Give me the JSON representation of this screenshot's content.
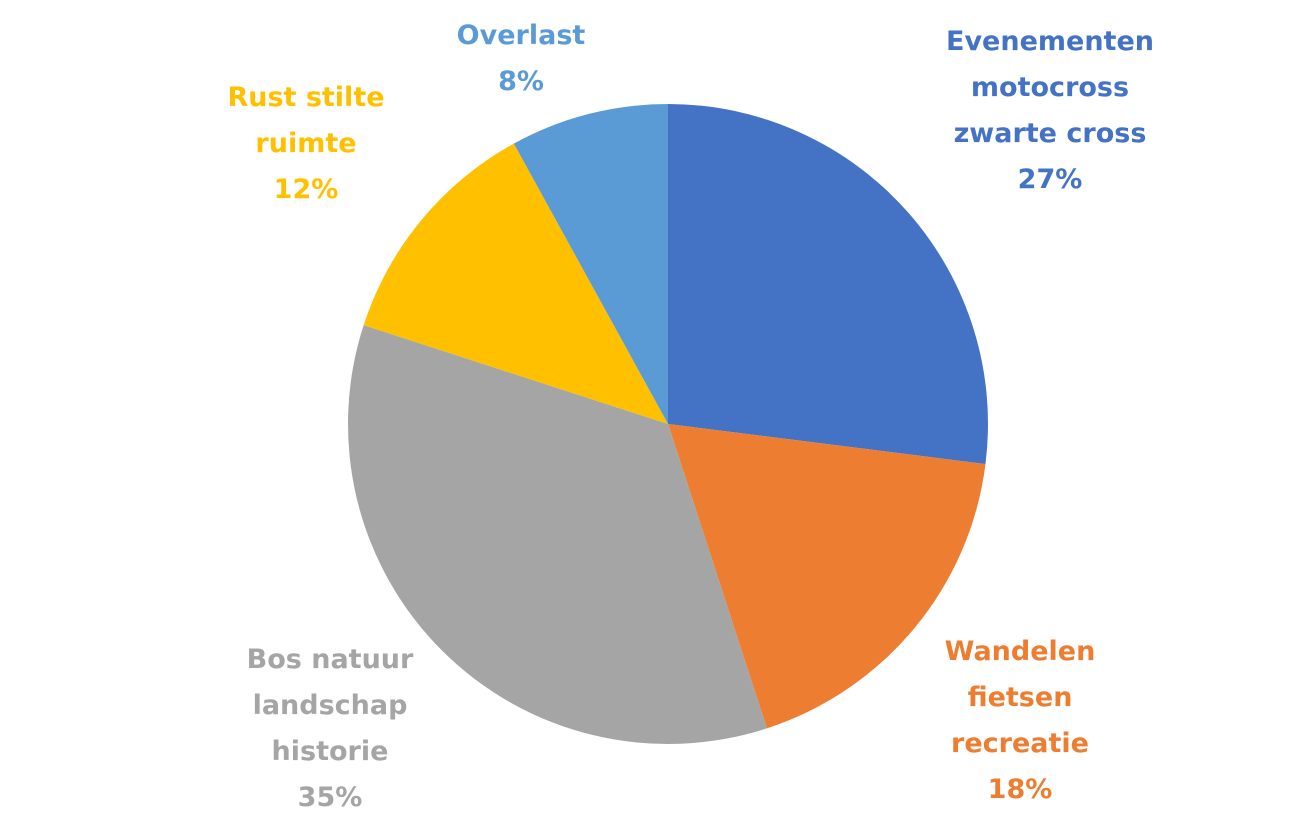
{
  "chart_data": {
    "type": "pie",
    "title": "",
    "slices": [
      {
        "lines": [
          "Evenementen",
          "motocross",
          "zwarte cross"
        ],
        "percent_label": "27%",
        "value": 27,
        "color": "#4472C4"
      },
      {
        "lines": [
          "Wandelen",
          "fietsen",
          "recreatie"
        ],
        "percent_label": "18%",
        "value": 18,
        "color": "#ED7D31"
      },
      {
        "lines": [
          "Bos natuur",
          "landschap",
          "historie"
        ],
        "percent_label": "35%",
        "value": 35,
        "color": "#A5A5A5"
      },
      {
        "lines": [
          "Rust stilte",
          "ruimte"
        ],
        "percent_label": "12%",
        "value": 12,
        "color": "#FFC000"
      },
      {
        "lines": [
          "Overlast"
        ],
        "percent_label": "8%",
        "value": 8,
        "color": "#5B9BD5"
      }
    ],
    "start": "12 o'clock",
    "direction": "clockwise",
    "legend": "none",
    "data_labels": "outside"
  }
}
